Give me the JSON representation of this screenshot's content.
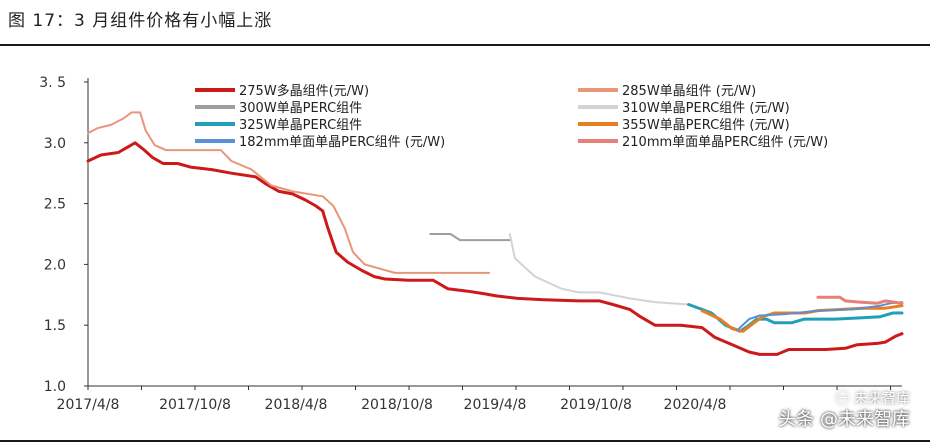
{
  "title": "图 17：3 月组件价格有小幅上涨",
  "watermark": {
    "top": "㊀ 未来智库",
    "bottom": "头条 @未来智库"
  },
  "chart_data": {
    "type": "line",
    "x_tick_labels": [
      "2017/4/8",
      "2017/10/8",
      "2018/4/8",
      "2018/10/8",
      "2019/4/8",
      "2019/10/8",
      "2020/4/8"
    ],
    "y_ticks": [
      1.0,
      1.5,
      2.0,
      2.5,
      3.0,
      3.5
    ],
    "y_tick_labels": [
      "1.0",
      "1.5",
      "2.0",
      "2.5",
      "3.0",
      "3. 5"
    ],
    "ylim": [
      1.0,
      3.5
    ],
    "xlim": [
      "2017-04-08",
      "2021-03-31"
    ],
    "grid": false,
    "legend_position": "top",
    "series": [
      {
        "name": "275W多晶组件(元/W)",
        "color": "#cc1a1a",
        "width": 3,
        "points": [
          [
            "2017-04-08",
            2.85
          ],
          [
            "2017-05-01",
            2.9
          ],
          [
            "2017-06-01",
            2.92
          ],
          [
            "2017-06-20",
            2.97
          ],
          [
            "2017-07-01",
            3.0
          ],
          [
            "2017-07-15",
            2.95
          ],
          [
            "2017-08-01",
            2.88
          ],
          [
            "2017-08-20",
            2.83
          ],
          [
            "2017-09-15",
            2.83
          ],
          [
            "2017-10-08",
            2.8
          ],
          [
            "2017-11-15",
            2.78
          ],
          [
            "2017-12-20",
            2.75
          ],
          [
            "2018-02-01",
            2.72
          ],
          [
            "2018-02-20",
            2.66
          ],
          [
            "2018-03-15",
            2.6
          ],
          [
            "2018-04-08",
            2.58
          ],
          [
            "2018-05-01",
            2.53
          ],
          [
            "2018-05-20",
            2.48
          ],
          [
            "2018-06-01",
            2.44
          ],
          [
            "2018-06-10",
            2.3
          ],
          [
            "2018-06-25",
            2.1
          ],
          [
            "2018-07-15",
            2.02
          ],
          [
            "2018-08-10",
            1.95
          ],
          [
            "2018-09-01",
            1.9
          ],
          [
            "2018-09-20",
            1.88
          ],
          [
            "2018-11-01",
            1.87
          ],
          [
            "2018-12-15",
            1.87
          ],
          [
            "2019-01-10",
            1.8
          ],
          [
            "2019-02-15",
            1.78
          ],
          [
            "2019-03-15",
            1.76
          ],
          [
            "2019-04-08",
            1.74
          ],
          [
            "2019-05-15",
            1.72
          ],
          [
            "2019-07-01",
            1.71
          ],
          [
            "2019-09-01",
            1.7
          ],
          [
            "2019-10-08",
            1.7
          ],
          [
            "2019-11-01",
            1.67
          ],
          [
            "2019-12-01",
            1.63
          ],
          [
            "2019-12-20",
            1.57
          ],
          [
            "2020-01-15",
            1.5
          ],
          [
            "2020-03-01",
            1.5
          ],
          [
            "2020-04-08",
            1.48
          ],
          [
            "2020-05-01",
            1.4
          ],
          [
            "2020-06-01",
            1.34
          ],
          [
            "2020-07-01",
            1.28
          ],
          [
            "2020-07-20",
            1.26
          ],
          [
            "2020-08-20",
            1.26
          ],
          [
            "2020-09-10",
            1.3
          ],
          [
            "2020-10-08",
            1.3
          ],
          [
            "2020-11-15",
            1.3
          ],
          [
            "2020-12-20",
            1.31
          ],
          [
            "2021-01-10",
            1.34
          ],
          [
            "2021-02-15",
            1.35
          ],
          [
            "2021-03-01",
            1.36
          ],
          [
            "2021-03-20",
            1.41
          ],
          [
            "2021-03-31",
            1.43
          ]
        ]
      },
      {
        "name": "285W单晶组件 (元/W)",
        "color": "#e8967a",
        "width": 2,
        "points": [
          [
            "2017-04-08",
            3.08
          ],
          [
            "2017-04-25",
            3.12
          ],
          [
            "2017-05-20",
            3.15
          ],
          [
            "2017-06-10",
            3.2
          ],
          [
            "2017-06-25",
            3.25
          ],
          [
            "2017-07-10",
            3.25
          ],
          [
            "2017-07-20",
            3.1
          ],
          [
            "2017-08-05",
            2.98
          ],
          [
            "2017-08-25",
            2.94
          ],
          [
            "2017-10-08",
            2.94
          ],
          [
            "2017-12-01",
            2.94
          ],
          [
            "2017-12-20",
            2.85
          ],
          [
            "2018-01-25",
            2.78
          ],
          [
            "2018-03-01",
            2.65
          ],
          [
            "2018-04-08",
            2.6
          ],
          [
            "2018-06-01",
            2.56
          ],
          [
            "2018-06-20",
            2.48
          ],
          [
            "2018-07-10",
            2.3
          ],
          [
            "2018-07-25",
            2.1
          ],
          [
            "2018-08-15",
            2.0
          ],
          [
            "2018-09-15",
            1.96
          ],
          [
            "2018-10-08",
            1.93
          ],
          [
            "2018-12-01",
            1.93
          ],
          [
            "2019-02-01",
            1.93
          ],
          [
            "2019-03-25",
            1.93
          ]
        ]
      },
      {
        "name": "300W单晶PERC组件",
        "color": "#9e9e9e",
        "width": 2,
        "points": [
          [
            "2018-12-10",
            2.25
          ],
          [
            "2019-01-15",
            2.25
          ],
          [
            "2019-02-01",
            2.2
          ],
          [
            "2019-04-08",
            2.2
          ],
          [
            "2019-05-01",
            2.2
          ]
        ]
      },
      {
        "name": "310W单晶PERC组件 (元/W)",
        "color": "#d3d3d3",
        "width": 2,
        "points": [
          [
            "2019-05-01",
            2.25
          ],
          [
            "2019-05-10",
            2.05
          ],
          [
            "2019-06-15",
            1.9
          ],
          [
            "2019-08-01",
            1.8
          ],
          [
            "2019-09-01",
            1.77
          ],
          [
            "2019-10-08",
            1.77
          ],
          [
            "2019-12-01",
            1.72
          ],
          [
            "2020-01-15",
            1.69
          ],
          [
            "2020-03-15",
            1.67
          ]
        ]
      },
      {
        "name": "325W单晶PERC组件",
        "color": "#1f9fb8",
        "width": 3,
        "points": [
          [
            "2020-03-15",
            1.67
          ],
          [
            "2020-04-08",
            1.63
          ],
          [
            "2020-04-25",
            1.6
          ],
          [
            "2020-05-20",
            1.5
          ],
          [
            "2020-06-15",
            1.45
          ],
          [
            "2020-07-01",
            1.5
          ],
          [
            "2020-07-15",
            1.55
          ],
          [
            "2020-08-01",
            1.55
          ],
          [
            "2020-08-15",
            1.52
          ],
          [
            "2020-09-15",
            1.52
          ],
          [
            "2020-10-08",
            1.55
          ],
          [
            "2020-12-01",
            1.55
          ],
          [
            "2021-01-15",
            1.56
          ],
          [
            "2021-02-20",
            1.57
          ],
          [
            "2021-03-15",
            1.6
          ],
          [
            "2021-03-31",
            1.6
          ]
        ]
      },
      {
        "name": "355W单晶PERC组件 (元/W)",
        "color": "#e67e22",
        "width": 3,
        "points": [
          [
            "2020-04-08",
            1.62
          ],
          [
            "2020-05-10",
            1.55
          ],
          [
            "2020-06-01",
            1.47
          ],
          [
            "2020-06-20",
            1.45
          ],
          [
            "2020-07-10",
            1.52
          ],
          [
            "2020-07-25",
            1.57
          ],
          [
            "2020-08-15",
            1.6
          ],
          [
            "2020-10-08",
            1.6
          ],
          [
            "2020-11-01",
            1.62
          ],
          [
            "2020-12-15",
            1.63
          ],
          [
            "2021-01-20",
            1.64
          ],
          [
            "2021-03-01",
            1.64
          ],
          [
            "2021-03-31",
            1.66
          ]
        ]
      },
      {
        "name": "182mm单面单晶PERC组件 (元/W)",
        "color": "#5b8fd6",
        "width": 2,
        "points": [
          [
            "2020-06-10",
            1.46
          ],
          [
            "2020-07-01",
            1.55
          ],
          [
            "2020-07-20",
            1.58
          ],
          [
            "2020-09-01",
            1.59
          ],
          [
            "2020-11-01",
            1.62
          ],
          [
            "2021-01-01",
            1.63
          ],
          [
            "2021-02-20",
            1.66
          ],
          [
            "2021-03-10",
            1.68
          ],
          [
            "2021-03-31",
            1.69
          ]
        ]
      },
      {
        "name": "210mm单面单晶PERC组件 (元/W)",
        "color": "#e8807a",
        "width": 3,
        "points": [
          [
            "2020-11-01",
            1.73
          ],
          [
            "2020-12-10",
            1.73
          ],
          [
            "2020-12-20",
            1.7
          ],
          [
            "2021-01-15",
            1.69
          ],
          [
            "2021-02-15",
            1.68
          ],
          [
            "2021-03-01",
            1.7
          ],
          [
            "2021-03-31",
            1.68
          ]
        ]
      }
    ]
  }
}
